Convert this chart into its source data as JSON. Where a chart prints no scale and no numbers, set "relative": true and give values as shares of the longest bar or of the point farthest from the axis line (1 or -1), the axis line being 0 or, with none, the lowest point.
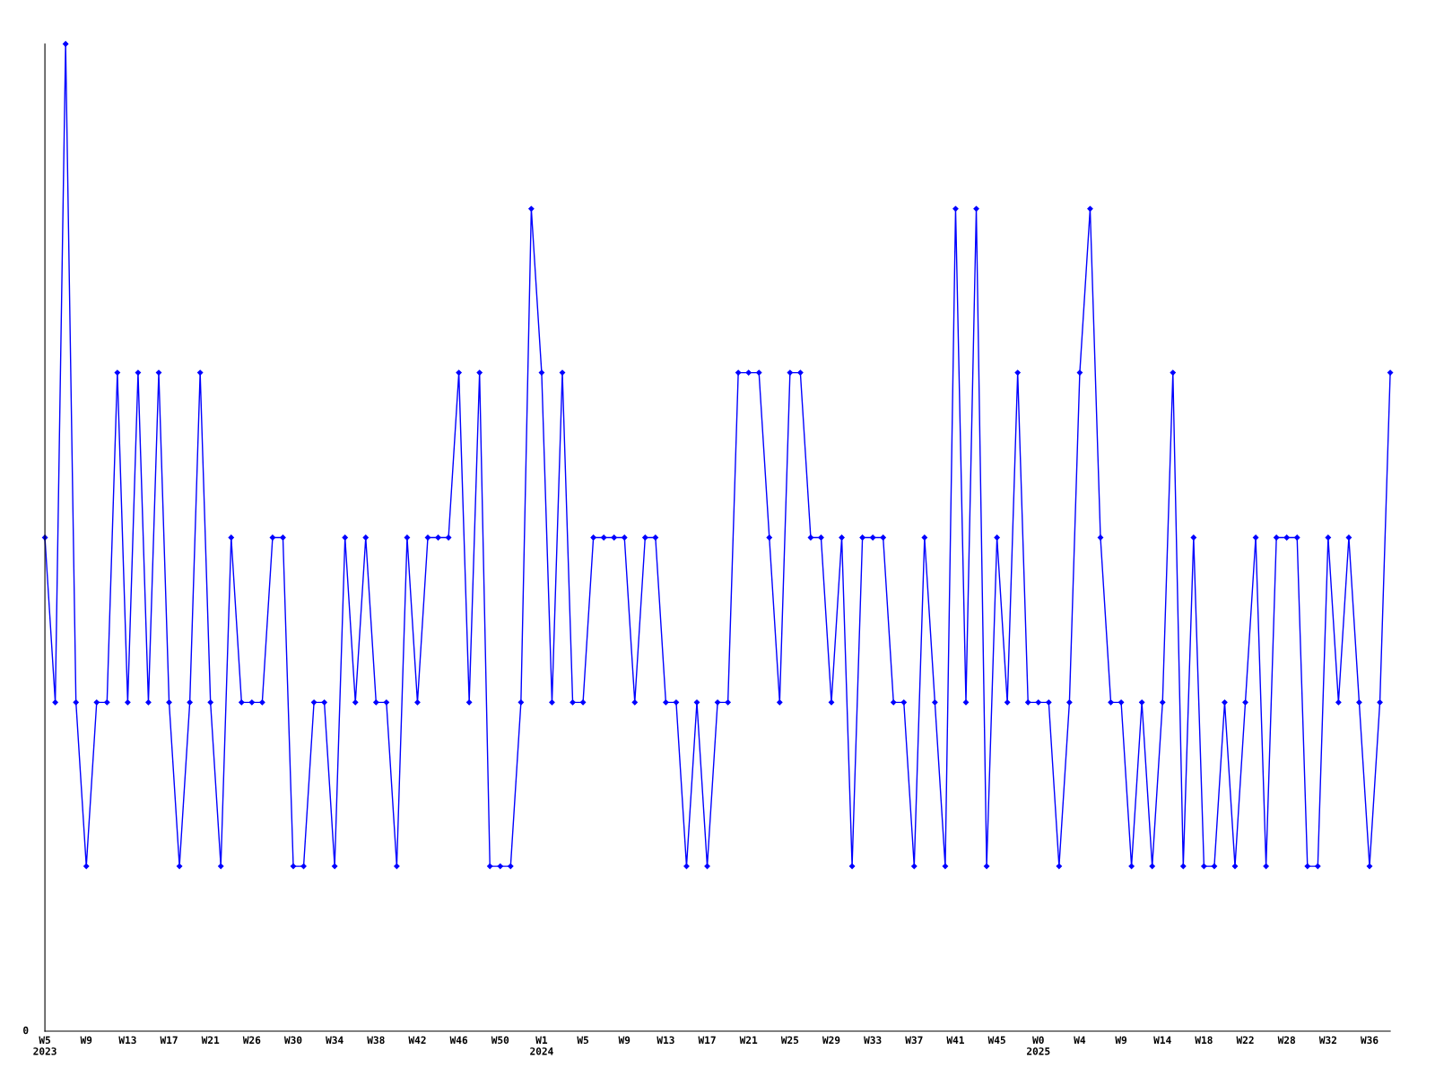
{
  "chart_data": {
    "type": "line",
    "relative": true,
    "marker": "diamond",
    "line_style": "solid",
    "grid": false,
    "legend": false,
    "annotations": [
      "0"
    ],
    "categories": [
      "W5\n2023",
      null,
      null,
      null,
      "W9",
      null,
      null,
      null,
      "W13",
      null,
      null,
      null,
      "W17",
      null,
      null,
      null,
      "W21",
      null,
      null,
      null,
      "W26",
      null,
      null,
      null,
      "W30",
      null,
      null,
      null,
      "W34",
      null,
      null,
      null,
      "W38",
      null,
      null,
      null,
      "W42",
      null,
      null,
      null,
      "W46",
      null,
      null,
      null,
      "W50",
      null,
      null,
      null,
      "W1\n2024",
      null,
      null,
      null,
      "W5",
      null,
      null,
      null,
      "W9",
      null,
      null,
      null,
      "W13",
      null,
      null,
      null,
      "W17",
      null,
      null,
      null,
      "W21",
      null,
      null,
      null,
      "W25",
      null,
      null,
      null,
      "W29",
      null,
      null,
      null,
      "W33",
      null,
      null,
      null,
      "W37",
      null,
      null,
      null,
      "W41",
      null,
      null,
      null,
      "W45",
      null,
      null,
      null,
      "W0\n2025",
      null,
      null,
      null,
      "W4",
      null,
      null,
      null,
      "W9",
      null,
      null,
      null,
      "W14",
      null,
      null,
      null,
      "W18",
      null,
      null,
      null,
      "W22",
      null,
      null,
      null,
      "W28",
      null,
      null,
      null,
      "W32",
      null,
      null,
      null,
      "W36",
      null,
      null
    ],
    "series": [
      {
        "color": "#0000ff",
        "values": [
          0.5,
          0.333,
          1,
          0.333,
          0.167,
          0.333,
          0.333,
          0.667,
          0.333,
          0.667,
          0.333,
          0.667,
          0.333,
          0.167,
          0.333,
          0.667,
          0.333,
          0.167,
          0.5,
          0.333,
          0.333,
          0.333,
          0.5,
          0.5,
          0.167,
          0.167,
          0.333,
          0.333,
          0.167,
          0.5,
          0.333,
          0.5,
          0.333,
          0.333,
          0.167,
          0.5,
          0.333,
          0.5,
          0.5,
          0.5,
          0.667,
          0.333,
          0.667,
          0.167,
          0.167,
          0.167,
          0.333,
          0.833,
          0.667,
          0.333,
          0.667,
          0.333,
          0.333,
          0.5,
          0.5,
          0.5,
          0.5,
          0.333,
          0.5,
          0.5,
          0.333,
          0.333,
          0.167,
          0.333,
          0.167,
          0.333,
          0.333,
          0.667,
          0.667,
          0.667,
          0.5,
          0.333,
          0.667,
          0.667,
          0.5,
          0.5,
          0.333,
          0.5,
          0.167,
          0.5,
          0.5,
          0.5,
          0.333,
          0.333,
          0.167,
          0.5,
          0.333,
          0.167,
          0.833,
          0.333,
          0.833,
          0.167,
          0.5,
          0.333,
          0.667,
          0.333,
          0.333,
          0.333,
          0.167,
          0.333,
          0.667,
          0.833,
          0.5,
          0.333,
          0.333,
          0.167,
          0.333,
          0.167,
          0.333,
          0.667,
          0.167,
          0.5,
          0.167,
          0.167,
          0.333,
          0.167,
          0.333,
          0.5,
          0.167,
          0.5,
          0.5,
          0.5,
          0.167,
          0.167,
          0.5,
          0.333,
          0.5,
          0.333,
          0.167,
          0.333,
          0.667
        ]
      }
    ]
  }
}
